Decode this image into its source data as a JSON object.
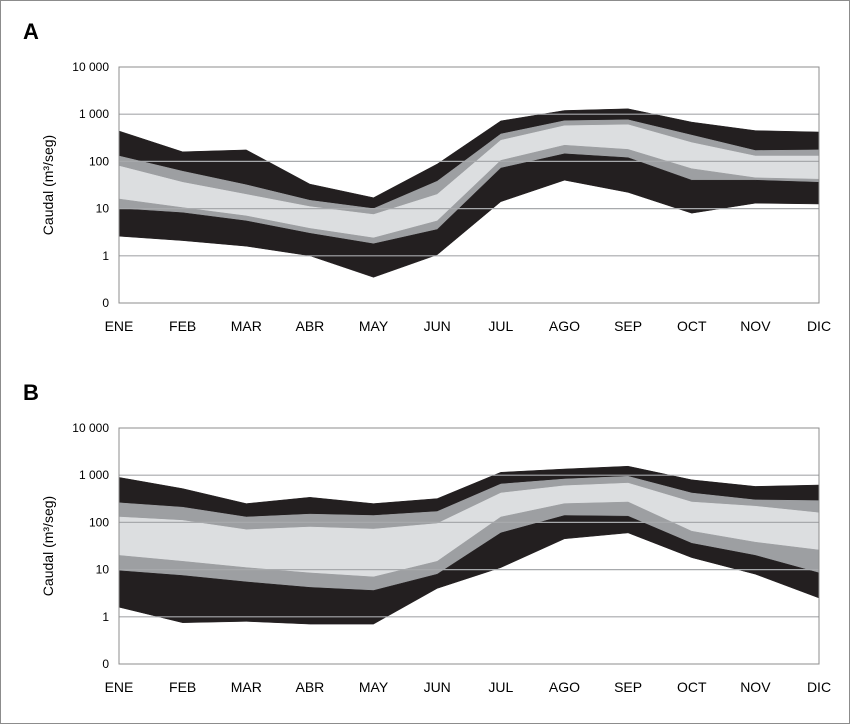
{
  "chart_data": [
    {
      "panel_label": "A",
      "type": "area",
      "ylabel": "Caudal (m³/seg)",
      "xlabel": "",
      "yscale": "log",
      "yticks": [
        {
          "value": 0.1,
          "label": "0"
        },
        {
          "value": 1,
          "label": "1"
        },
        {
          "value": 10,
          "label": "10"
        },
        {
          "value": 100,
          "label": "100"
        },
        {
          "value": 1000,
          "label": "1 000"
        },
        {
          "value": 10000,
          "label": "10 000"
        }
      ],
      "ylim": [
        0.1,
        10000
      ],
      "grid": true,
      "categories": [
        "ENE",
        "FEB",
        "MAR",
        "ABR",
        "MAY",
        "JUN",
        "JUL",
        "AGO",
        "SEP",
        "OCT",
        "NOV",
        "DIC"
      ],
      "x_positions": [
        0,
        1,
        2,
        3,
        4,
        5,
        6,
        7,
        8,
        9,
        10,
        11
      ],
      "band_colors": [
        "#231f20",
        "#9d9fa2",
        "#dcdee0",
        "#9d9fa2",
        "#231f20"
      ],
      "boundaries": [
        [
          440,
          160,
          175,
          33,
          17,
          88,
          720,
          1200,
          1300,
          680,
          450,
          420
        ],
        [
          130,
          62,
          32,
          15,
          10,
          38,
          380,
          730,
          760,
          360,
          170,
          175
        ],
        [
          80,
          36,
          20,
          11,
          7.5,
          20,
          280,
          570,
          600,
          250,
          130,
          130
        ],
        [
          16,
          10.5,
          7,
          3.8,
          2.4,
          5.5,
          105,
          220,
          180,
          70,
          45,
          42
        ],
        [
          10,
          8.2,
          5.5,
          3,
          1.8,
          3.6,
          72,
          145,
          120,
          40,
          40,
          36
        ],
        [
          2.6,
          2.1,
          1.6,
          1.0,
          0.35,
          1.05,
          14,
          40,
          22,
          8,
          13,
          12.5
        ]
      ]
    },
    {
      "panel_label": "B",
      "type": "area",
      "ylabel": "Caudal (m³/seg)",
      "xlabel": "",
      "yscale": "log",
      "yticks": [
        {
          "value": 0.1,
          "label": "0"
        },
        {
          "value": 1,
          "label": "1"
        },
        {
          "value": 10,
          "label": "10"
        },
        {
          "value": 100,
          "label": "100"
        },
        {
          "value": 1000,
          "label": "1 000"
        },
        {
          "value": 10000,
          "label": "10 000"
        }
      ],
      "ylim": [
        0.1,
        10000
      ],
      "grid": true,
      "categories": [
        "ENE",
        "FEB",
        "MAR",
        "ABR",
        "MAY",
        "JUN",
        "JUL",
        "AGO",
        "SEP",
        "OCT",
        "NOV",
        "DIC"
      ],
      "x_positions": [
        0,
        1,
        2,
        3,
        4,
        5,
        6,
        7,
        8,
        9,
        10,
        11
      ],
      "band_colors": [
        "#231f20",
        "#9d9fa2",
        "#dcdee0",
        "#9d9fa2",
        "#231f20"
      ],
      "boundaries": [
        [
          900,
          520,
          250,
          340,
          250,
          320,
          1150,
          1350,
          1550,
          800,
          580,
          620
        ],
        [
          260,
          210,
          130,
          150,
          140,
          170,
          650,
          830,
          950,
          420,
          300,
          290
        ],
        [
          130,
          110,
          70,
          80,
          72,
          95,
          420,
          600,
          680,
          270,
          220,
          160
        ],
        [
          20,
          15,
          11,
          8.5,
          7,
          15,
          130,
          250,
          270,
          65,
          38,
          26
        ],
        [
          9.5,
          7.5,
          5.5,
          4.2,
          3.6,
          8,
          60,
          140,
          135,
          36,
          20,
          8.5
        ],
        [
          1.6,
          0.75,
          0.8,
          0.7,
          0.7,
          4,
          11,
          45,
          60,
          18,
          8,
          2.5
        ]
      ]
    }
  ]
}
